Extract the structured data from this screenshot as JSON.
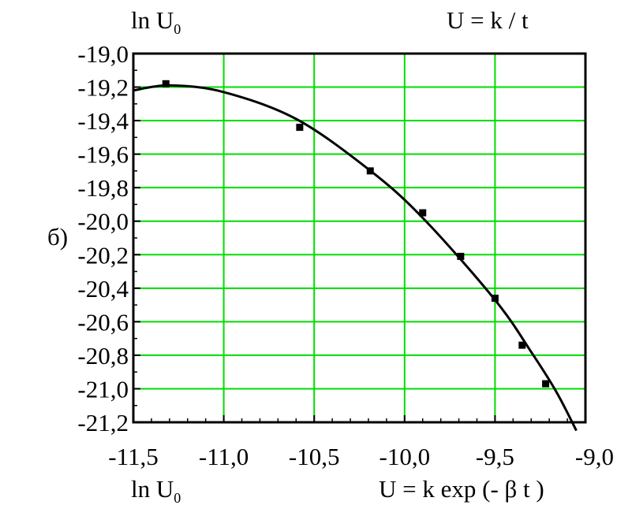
{
  "chart_data": {
    "type": "scatter",
    "panel_label": "б)",
    "y_axis_caption": {
      "main": "ln U",
      "sub": "0"
    },
    "x_axis_caption": {
      "main": "ln U",
      "sub": "0"
    },
    "top_right_annotation": "U = k / t",
    "bottom_right_annotation": "U = k exp (- β t )",
    "xlim": [
      -11.5,
      -9.0
    ],
    "ylim": [
      -21.2,
      -19.0
    ],
    "x_ticks": [
      -11.5,
      -11.0,
      -10.5,
      -10.0,
      -9.5,
      -9.0
    ],
    "x_tick_labels": [
      "-11,5",
      "-11,0",
      "-10,5",
      "-10,0",
      "-9,5",
      "-9,0"
    ],
    "y_ticks": [
      -19.0,
      -19.2,
      -19.4,
      -19.6,
      -19.8,
      -20.0,
      -20.2,
      -20.4,
      -20.6,
      -20.8,
      -21.0,
      -21.2
    ],
    "y_tick_labels": [
      "-19,0",
      "-19,2",
      "-19,4",
      "-19,6",
      "-19,8",
      "-20,0",
      "-20,2",
      "-20,4",
      "-20,6",
      "-20,8",
      "-21,0",
      "-21,2"
    ],
    "grid": true,
    "grid_color": "#00dd00",
    "series": [
      {
        "kind": "points",
        "x": [
          -11.32,
          -10.58,
          -10.19,
          -9.9,
          -9.69,
          -9.5,
          -9.35,
          -9.22
        ],
        "y": [
          -19.18,
          -19.44,
          -19.7,
          -19.95,
          -20.21,
          -20.46,
          -20.74,
          -20.97
        ]
      },
      {
        "kind": "fit-line",
        "x": [
          -11.5,
          -11.3,
          -11.0,
          -10.6,
          -10.2,
          -9.9,
          -9.5,
          -9.3,
          -9.16,
          -9.05
        ],
        "y": [
          -19.22,
          -19.19,
          -19.23,
          -19.39,
          -19.69,
          -19.98,
          -20.47,
          -20.78,
          -21.02,
          -21.25
        ]
      }
    ]
  }
}
